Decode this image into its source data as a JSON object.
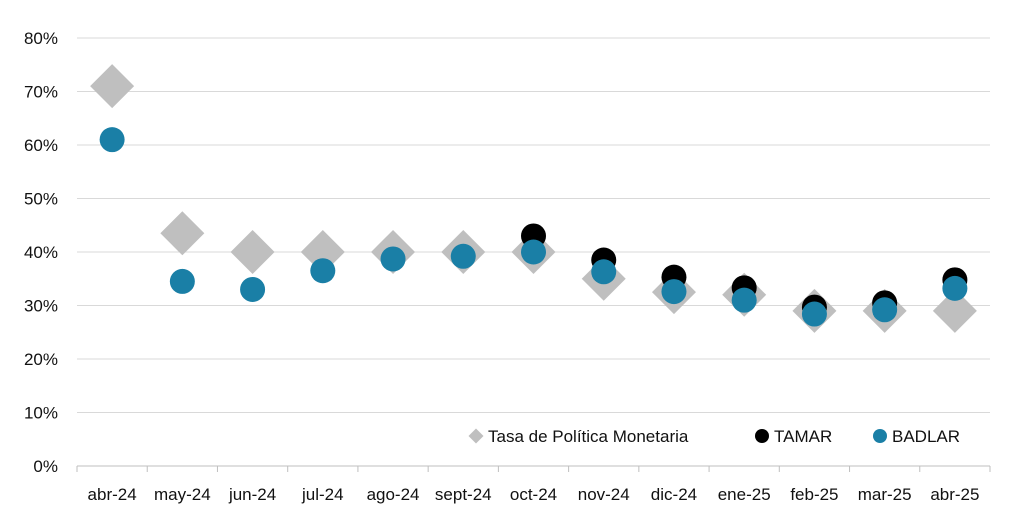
{
  "chart_data": {
    "type": "scatter",
    "categories": [
      "abr-24",
      "may-24",
      "jun-24",
      "jul-24",
      "ago-24",
      "sept-24",
      "oct-24",
      "nov-24",
      "dic-24",
      "ene-25",
      "feb-25",
      "mar-25",
      "abr-25"
    ],
    "ylim": [
      0,
      80
    ],
    "yticks": [
      "0%",
      "10%",
      "20%",
      "30%",
      "40%",
      "50%",
      "60%",
      "70%",
      "80%"
    ],
    "grid": true,
    "legend_position": "bottom-right",
    "series": [
      {
        "name": "Tasa de Política Monetaria",
        "marker": "diamond",
        "color": "#bfbfbf",
        "values": [
          71,
          43.5,
          40,
          40,
          40,
          40,
          40,
          35,
          32.5,
          32,
          29,
          29,
          29
        ]
      },
      {
        "name": "TAMAR",
        "marker": "circle",
        "color": "#000000",
        "values": [
          null,
          null,
          null,
          null,
          null,
          null,
          43,
          38.5,
          35.3,
          33.3,
          29.7,
          30.5,
          34.8
        ]
      },
      {
        "name": "BADLAR",
        "marker": "circle",
        "color": "#1a7fa6",
        "values": [
          61,
          34.5,
          33,
          36.5,
          38.7,
          39.2,
          40,
          36.3,
          32.6,
          31,
          28.4,
          29.2,
          33.2
        ]
      }
    ]
  }
}
